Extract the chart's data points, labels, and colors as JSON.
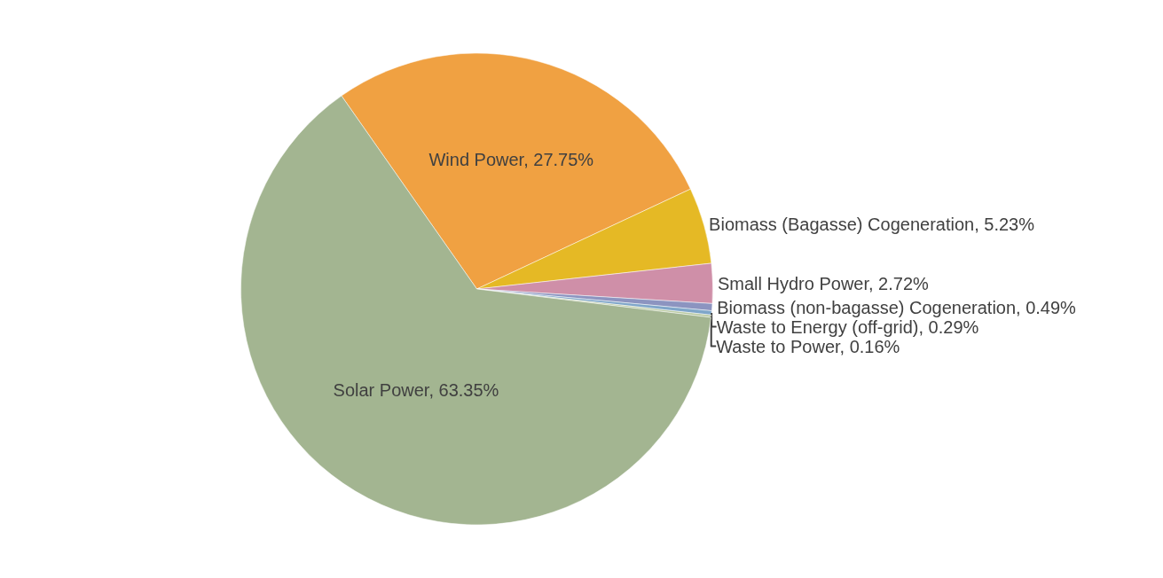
{
  "chart_data": {
    "type": "pie",
    "categories": [
      "Wind Power",
      "Biomass (Bagasse) Cogeneration",
      "Small Hydro Power",
      "Biomass (non-bagasse) Cogeneration",
      "Waste to Energy (off-grid)",
      "Waste to Power",
      "Solar Power"
    ],
    "values": [
      27.75,
      5.23,
      2.72,
      0.49,
      0.29,
      0.16,
      63.35
    ],
    "colors": [
      "#f0a142",
      "#e5b925",
      "#cf8fa8",
      "#8c94c0",
      "#7fa6c9",
      "#b9c9a0",
      "#a3b591"
    ],
    "value_labels": [
      "27.75%",
      "5.23%",
      "2.72%",
      "0.49%",
      "0.29%",
      "0.16%",
      "63.35%"
    ],
    "legend": false
  }
}
